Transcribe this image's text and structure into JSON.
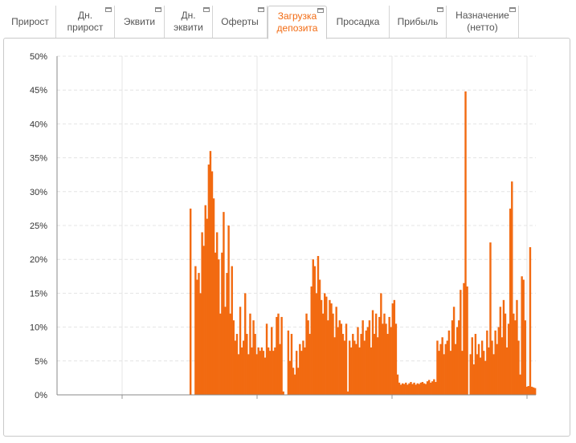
{
  "tabs": [
    {
      "label": "Прирост",
      "has_icon": false,
      "active": false
    },
    {
      "label": "Дн.\nприрост",
      "has_icon": true,
      "active": false
    },
    {
      "label": "Эквити",
      "has_icon": true,
      "active": false
    },
    {
      "label": "Дн.\nэквити",
      "has_icon": true,
      "active": false
    },
    {
      "label": "Оферты",
      "has_icon": true,
      "active": false
    },
    {
      "label": "Загрузка\nдепозита",
      "has_icon": true,
      "active": true
    },
    {
      "label": "Просадка",
      "has_icon": false,
      "active": false
    },
    {
      "label": "Прибыль",
      "has_icon": true,
      "active": false
    },
    {
      "label": "Назначение\n(нетто)",
      "has_icon": true,
      "active": false
    }
  ],
  "colors": {
    "accent": "#f26a11",
    "bars": "#f26a11",
    "grid": "#e4e4e4"
  },
  "chart_data": {
    "type": "bar",
    "title": "",
    "xlabel": "",
    "ylabel": "",
    "ylim": [
      0,
      50
    ],
    "yticks": [
      "0%",
      "5%",
      "10%",
      "15%",
      "20%",
      "25%",
      "30%",
      "35%",
      "40%",
      "45%",
      "50%"
    ],
    "grid": "horizontal dashed",
    "series": [
      {
        "values": [
          0,
          0,
          0,
          0,
          0,
          0,
          0,
          0,
          0,
          0,
          0,
          0,
          0,
          0,
          0,
          0,
          0,
          0,
          0,
          0,
          0,
          0,
          0,
          0,
          0,
          0,
          0,
          0,
          0,
          0,
          0,
          0,
          0,
          0,
          0,
          0,
          0,
          0,
          0,
          0,
          0,
          0,
          0,
          0,
          0,
          0,
          0,
          0,
          0,
          0,
          0,
          0,
          0,
          0,
          0,
          0,
          0,
          0,
          0,
          0,
          0,
          0,
          0,
          0,
          0,
          0,
          0,
          0,
          0,
          0,
          0,
          0,
          0,
          0,
          0,
          0,
          0,
          0,
          0,
          0,
          27.5,
          0,
          0,
          19,
          17,
          18,
          15,
          24,
          22,
          28,
          26,
          34,
          36,
          33,
          29,
          21,
          24,
          20,
          12,
          21,
          27,
          13,
          18,
          25,
          12,
          19,
          11,
          8,
          9,
          6,
          13,
          7,
          8,
          15,
          9,
          6,
          12,
          7,
          11,
          9,
          6,
          7,
          6.5,
          7,
          6.5,
          5.5,
          10.5,
          7,
          6.5,
          10,
          6.5,
          7,
          11.5,
          12,
          7.5,
          11.5,
          0.5,
          0,
          0,
          9.5,
          5,
          9,
          4,
          3,
          6.5,
          4,
          7.5,
          6.5,
          8,
          7,
          12,
          11,
          9,
          16,
          20,
          19,
          15,
          20.5,
          17,
          14,
          12,
          15,
          14.5,
          11,
          14,
          13.5,
          12,
          8.5,
          13,
          10,
          11,
          10.5,
          9,
          8,
          10.5,
          0.5,
          8,
          7,
          9,
          8,
          7.5,
          10,
          7,
          9,
          11,
          8,
          9.5,
          10,
          11,
          7,
          12.5,
          9,
          12,
          8.5,
          11.5,
          15,
          10.5,
          12,
          10.5,
          9,
          11.5,
          10,
          13.5,
          14,
          10.5,
          3,
          1.8,
          1.5,
          1.7,
          1.6,
          1.8,
          1.5,
          1.7,
          1.9,
          1.6,
          1.8,
          1.5,
          1.7,
          1.6,
          1.8,
          1.9,
          1.7,
          1.6,
          2,
          2.2,
          1.8,
          2,
          2.3,
          1.9,
          8,
          6.5,
          7.5,
          8.5,
          6,
          7.5,
          8,
          9.5,
          6.5,
          11,
          13,
          7.5,
          10,
          11,
          15.5,
          6.5,
          16.5,
          44.8,
          16,
          0,
          6,
          8.5,
          4.5,
          9,
          6,
          7.5,
          5.5,
          8,
          6.5,
          5,
          9.5,
          7,
          22.5,
          8,
          6,
          9.5,
          7.5,
          10,
          13,
          8.5,
          14,
          12,
          7,
          10.5,
          27.5,
          31.5,
          12,
          11,
          14,
          8,
          3,
          17.5,
          17,
          11,
          1.2,
          1.3,
          21.8,
          1.2,
          1.1,
          1
        ]
      }
    ]
  }
}
